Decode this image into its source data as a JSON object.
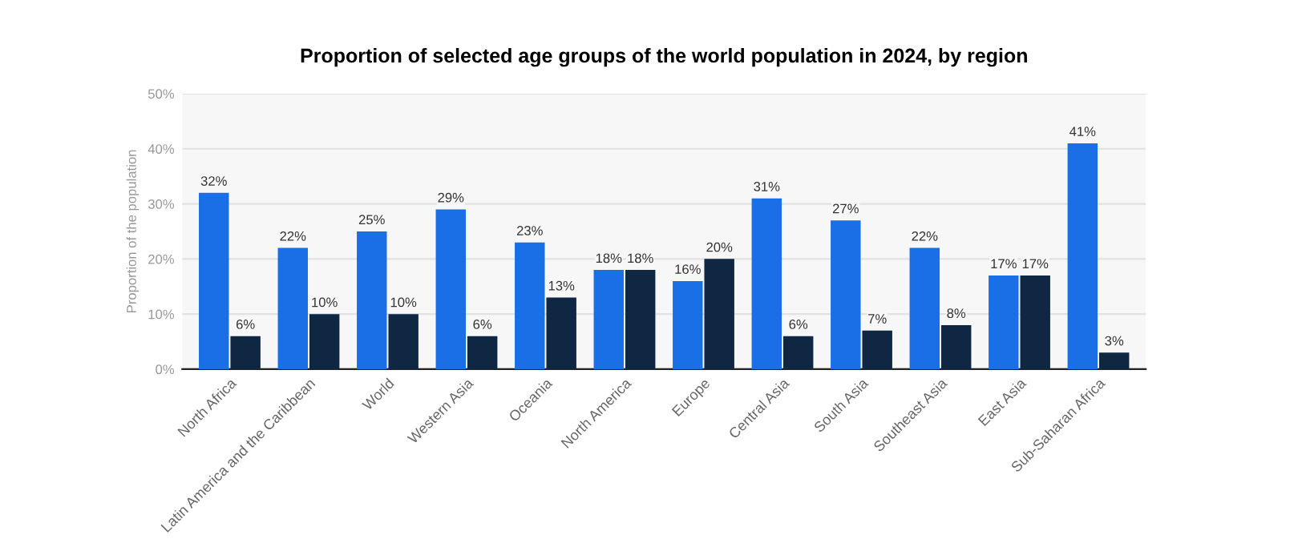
{
  "chart_data": {
    "type": "bar",
    "title": "Proportion of selected age groups of the world population in 2024, by region",
    "ylabel": "Proportion of the population",
    "categories": [
      "North Africa",
      "Latin America and the Caribbean",
      "World",
      "Western Asia",
      "Oceania",
      "North America",
      "Europe",
      "Central Asia",
      "South Asia",
      "Southeast Asia",
      "East Asia",
      "Sub-Saharan Africa"
    ],
    "series": [
      {
        "color": "#1a6ee6",
        "values": [
          32,
          22,
          25,
          29,
          23,
          18,
          16,
          31,
          27,
          22,
          17,
          41
        ],
        "value_labels": [
          "32%",
          "22%",
          "25%",
          "29%",
          "23%",
          "18%",
          "16%",
          "31%",
          "27%",
          "22%",
          "17%",
          "41%"
        ]
      },
      {
        "color": "#0f2743",
        "values": [
          6,
          10,
          10,
          6,
          13,
          18,
          20,
          6,
          7,
          8,
          17,
          3
        ],
        "value_labels": [
          "6%",
          "10%",
          "10%",
          "6%",
          "13%",
          "18%",
          "20%",
          "6%",
          "7%",
          "8%",
          "17%",
          "3%"
        ]
      }
    ],
    "ylim": [
      0,
      50
    ],
    "yticks": [
      {
        "value": 0,
        "label": "0%"
      },
      {
        "value": 10,
        "label": "10%"
      },
      {
        "value": 20,
        "label": "20%"
      },
      {
        "value": 30,
        "label": "30%"
      },
      {
        "value": 40,
        "label": "40%"
      },
      {
        "value": 50,
        "label": "50%"
      }
    ],
    "grid": "y",
    "legend": false
  }
}
